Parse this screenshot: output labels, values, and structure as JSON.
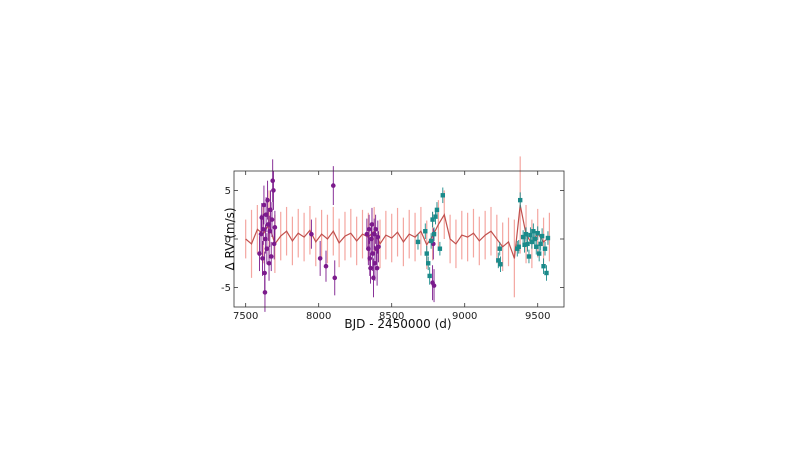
{
  "chart_data": {
    "type": "scatter",
    "xlabel": "BJD - 2450000 (d)",
    "ylabel": "Δ RV  (m/s)",
    "xlim": [
      7420,
      9680
    ],
    "ylim": [
      -7,
      7
    ],
    "x_ticks": [
      7500,
      8000,
      8500,
      9000,
      9500
    ],
    "y_ticks": [
      5,
      0,
      -5
    ],
    "x_tick_labels": [
      "7500",
      "8000",
      "8500",
      "9000",
      "9500"
    ],
    "y_tick_labels": [
      "5",
      "0",
      "-5"
    ],
    "grid": false,
    "legend": "none",
    "colors": {
      "model_band": "#f4a6a0",
      "model_line": "#c0504d",
      "series_1": "#7b1a8c",
      "series_2": "#1a8a8a"
    },
    "series": [
      {
        "marker": "circle",
        "color": "#7b1a8c",
        "points": [
          [
            7595,
            -1.5,
            1.8
          ],
          [
            7605,
            0.5,
            2.0
          ],
          [
            7610,
            2.2,
            1.5
          ],
          [
            7615,
            -2.0,
            1.8
          ],
          [
            7620,
            1.0,
            1.6
          ],
          [
            7625,
            3.5,
            2.0
          ],
          [
            7630,
            -3.5,
            2.2
          ],
          [
            7632,
            -5.5,
            2.0
          ],
          [
            7635,
            0.0,
            1.5
          ],
          [
            7640,
            2.5,
            1.8
          ],
          [
            7645,
            -1.0,
            1.6
          ],
          [
            7650,
            4.0,
            2.0
          ],
          [
            7655,
            1.5,
            1.7
          ],
          [
            7660,
            -2.5,
            1.8
          ],
          [
            7665,
            0.8,
            1.6
          ],
          [
            7670,
            3.0,
            2.0
          ],
          [
            7675,
            -1.8,
            1.5
          ],
          [
            7680,
            2.0,
            1.8
          ],
          [
            7685,
            6.0,
            2.2
          ],
          [
            7690,
            5.0,
            2.0
          ],
          [
            7695,
            -0.5,
            1.6
          ],
          [
            7700,
            1.2,
            1.7
          ],
          [
            7950,
            0.5,
            1.5
          ],
          [
            8010,
            -2.0,
            1.8
          ],
          [
            8050,
            -2.8,
            1.6
          ],
          [
            8100,
            5.5,
            2.0
          ],
          [
            8110,
            -4.0,
            1.8
          ],
          [
            8330,
            0.5,
            1.6
          ],
          [
            8340,
            -1.0,
            1.7
          ],
          [
            8345,
            1.0,
            1.5
          ],
          [
            8350,
            -2.0,
            1.8
          ],
          [
            8355,
            -3.0,
            1.6
          ],
          [
            8360,
            0.0,
            1.5
          ],
          [
            8365,
            1.5,
            1.7
          ],
          [
            8370,
            -1.5,
            1.8
          ],
          [
            8375,
            -4.0,
            2.0
          ],
          [
            8380,
            0.5,
            1.6
          ],
          [
            8385,
            -2.5,
            1.8
          ],
          [
            8390,
            1.0,
            1.5
          ],
          [
            8395,
            -1.0,
            1.6
          ],
          [
            8400,
            -3.0,
            1.8
          ],
          [
            8405,
            0.2,
            1.7
          ],
          [
            8410,
            -0.8,
            1.6
          ],
          [
            8780,
            -4.5,
            1.8
          ],
          [
            8785,
            -0.5,
            1.6
          ],
          [
            8790,
            -4.8,
            1.7
          ]
        ]
      },
      {
        "marker": "square",
        "color": "#1a8a8a",
        "points": [
          [
            8680,
            -0.3,
            0.8
          ],
          [
            8730,
            0.8,
            0.8
          ],
          [
            8740,
            -1.5,
            0.8
          ],
          [
            8750,
            -2.5,
            0.7
          ],
          [
            8760,
            -3.8,
            0.9
          ],
          [
            8770,
            -0.2,
            0.8
          ],
          [
            8780,
            2.0,
            0.8
          ],
          [
            8790,
            0.5,
            0.7
          ],
          [
            8800,
            2.3,
            0.8
          ],
          [
            8810,
            3.0,
            0.8
          ],
          [
            8830,
            -1.0,
            0.7
          ],
          [
            8850,
            4.5,
            0.8
          ],
          [
            9230,
            -2.2,
            0.8
          ],
          [
            9240,
            -1.0,
            0.7
          ],
          [
            9245,
            -2.6,
            0.8
          ],
          [
            9360,
            -1.0,
            0.8
          ],
          [
            9370,
            -0.8,
            0.7
          ],
          [
            9380,
            4.0,
            0.8
          ],
          [
            9400,
            0.2,
            0.7
          ],
          [
            9410,
            -0.6,
            0.8
          ],
          [
            9420,
            0.5,
            0.7
          ],
          [
            9430,
            -0.5,
            0.8
          ],
          [
            9440,
            -1.8,
            0.7
          ],
          [
            9450,
            0.4,
            0.8
          ],
          [
            9460,
            -0.3,
            0.7
          ],
          [
            9470,
            0.8,
            0.8
          ],
          [
            9480,
            0.0,
            0.7
          ],
          [
            9490,
            -0.8,
            0.8
          ],
          [
            9500,
            0.6,
            0.7
          ],
          [
            9510,
            -1.5,
            0.8
          ],
          [
            9520,
            -0.5,
            0.7
          ],
          [
            9530,
            0.3,
            0.8
          ],
          [
            9540,
            -2.8,
            0.8
          ],
          [
            9550,
            -1.0,
            0.7
          ],
          [
            9560,
            -3.5,
            0.8
          ],
          [
            9570,
            0.1,
            0.7
          ]
        ]
      }
    ],
    "model": {
      "x": [
        7500,
        7540,
        7580,
        7620,
        7660,
        7700,
        7740,
        7780,
        7820,
        7860,
        7900,
        7940,
        7980,
        8020,
        8060,
        8100,
        8140,
        8180,
        8220,
        8260,
        8300,
        8340,
        8380,
        8420,
        8460,
        8500,
        8540,
        8580,
        8620,
        8660,
        8700,
        8740,
        8780,
        8820,
        8860,
        8900,
        8940,
        8980,
        9020,
        9060,
        9100,
        9140,
        9180,
        9220,
        9260,
        9300,
        9340,
        9380,
        9420,
        9460,
        9500,
        9540,
        9580
      ],
      "y": [
        0.0,
        -0.5,
        1.0,
        0.5,
        1.5,
        -0.5,
        0.3,
        0.8,
        -0.2,
        0.6,
        0.2,
        0.9,
        -0.3,
        0.5,
        0.0,
        0.8,
        -0.4,
        0.3,
        0.6,
        -0.2,
        0.5,
        0.2,
        0.8,
        -0.5,
        0.4,
        0.1,
        0.7,
        -0.3,
        0.5,
        0.2,
        0.8,
        -0.6,
        0.3,
        1.5,
        2.5,
        0.0,
        -0.5,
        0.4,
        0.2,
        0.6,
        -0.2,
        0.4,
        0.8,
        0.0,
        -0.8,
        -0.3,
        -2.0,
        3.5,
        0.5,
        -0.5,
        0.6,
        -0.3,
        0.2
      ],
      "band": [
        2.0,
        3.5,
        2.5,
        3.0,
        3.5,
        3.0,
        2.5,
        2.5,
        2.5,
        2.5,
        2.5,
        2.5,
        2.5,
        2.5,
        2.5,
        2.5,
        2.5,
        2.5,
        2.5,
        2.5,
        2.5,
        2.5,
        2.5,
        2.5,
        2.5,
        2.5,
        2.5,
        2.5,
        2.5,
        2.5,
        2.5,
        2.5,
        2.5,
        2.5,
        2.5,
        2.5,
        2.5,
        2.5,
        2.5,
        2.5,
        2.5,
        2.5,
        2.5,
        2.5,
        2.5,
        2.5,
        4.0,
        5.0,
        3.0,
        2.5,
        2.5,
        2.5,
        2.5
      ]
    }
  }
}
